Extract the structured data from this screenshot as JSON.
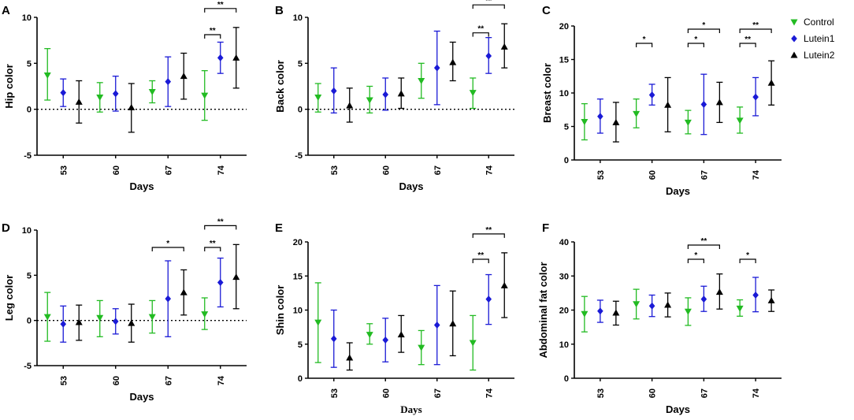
{
  "legend": [
    {
      "name": "Control",
      "color": "#22bb22",
      "marker": "triangle-down"
    },
    {
      "name": "Lutein1",
      "color": "#1a1ad6",
      "marker": "diamond"
    },
    {
      "name": "Lutein2",
      "color": "#000000",
      "marker": "triangle-up"
    }
  ],
  "chart_data": [
    {
      "panel": "A",
      "type": "scatter",
      "subtype": "mean-error-bars",
      "xlabel": "Days",
      "ylabel": "Hip color",
      "categories": [
        "53",
        "60",
        "67",
        "74"
      ],
      "ylim": [
        -5,
        10
      ],
      "yticks": [
        -5,
        0,
        5,
        10
      ],
      "zero_line": true,
      "series": [
        {
          "name": "Control",
          "values": [
            3.7,
            1.3,
            1.9,
            1.5
          ],
          "err_low": [
            1.0,
            -0.3,
            0.7,
            -1.2
          ],
          "err_high": [
            6.6,
            2.9,
            3.1,
            4.2
          ]
        },
        {
          "name": "Lutein1",
          "values": [
            1.8,
            1.7,
            3.0,
            5.6
          ],
          "err_low": [
            0.3,
            -0.2,
            0.3,
            3.9
          ],
          "err_high": [
            3.3,
            3.6,
            5.7,
            7.3
          ]
        },
        {
          "name": "Lutein2",
          "values": [
            0.8,
            0.2,
            3.6,
            5.6
          ],
          "err_low": [
            -1.5,
            -2.5,
            1.1,
            2.3
          ],
          "err_high": [
            3.1,
            2.8,
            6.1,
            8.9
          ]
        }
      ],
      "annotations": [
        {
          "category": "74",
          "from": "Control",
          "to": "Lutein1",
          "label": "**",
          "level": 1
        },
        {
          "category": "74",
          "from": "Control",
          "to": "Lutein2",
          "label": "**",
          "level": 2
        }
      ]
    },
    {
      "panel": "B",
      "type": "scatter",
      "subtype": "mean-error-bars",
      "xlabel": "Days",
      "ylabel": "Back color",
      "categories": [
        "53",
        "60",
        "67",
        "74"
      ],
      "ylim": [
        -5,
        10
      ],
      "yticks": [
        -5,
        0,
        5,
        10
      ],
      "zero_line": true,
      "series": [
        {
          "name": "Control",
          "values": [
            1.3,
            1.0,
            3.1,
            1.8
          ],
          "err_low": [
            -0.3,
            -0.4,
            1.2,
            0.1
          ],
          "err_high": [
            2.8,
            2.5,
            5.0,
            3.4
          ]
        },
        {
          "name": "Lutein1",
          "values": [
            2.0,
            1.6,
            4.5,
            5.8
          ],
          "err_low": [
            -0.4,
            -0.1,
            0.5,
            3.9
          ],
          "err_high": [
            4.5,
            3.4,
            8.5,
            7.8
          ]
        },
        {
          "name": "Lutein2",
          "values": [
            0.4,
            1.7,
            5.1,
            6.8
          ],
          "err_low": [
            -1.4,
            0.1,
            3.1,
            4.5
          ],
          "err_high": [
            2.3,
            3.4,
            7.3,
            9.3
          ]
        }
      ],
      "annotations": [
        {
          "category": "74",
          "from": "Control",
          "to": "Lutein1",
          "label": "**",
          "level": 1
        },
        {
          "category": "74",
          "from": "Control",
          "to": "Lutein2",
          "label": "**",
          "level": 2
        }
      ]
    },
    {
      "panel": "C",
      "type": "scatter",
      "subtype": "mean-error-bars",
      "xlabel": "Days",
      "ylabel": "Breast color",
      "categories": [
        "53",
        "60",
        "67",
        "74"
      ],
      "ylim": [
        0,
        20
      ],
      "yticks": [
        0,
        5,
        10,
        15,
        20
      ],
      "zero_line": false,
      "series": [
        {
          "name": "Control",
          "values": [
            5.7,
            6.9,
            5.6,
            5.9
          ],
          "err_low": [
            3.0,
            4.8,
            3.9,
            4.0
          ],
          "err_high": [
            8.4,
            9.1,
            7.4,
            7.9
          ]
        },
        {
          "name": "Lutein1",
          "values": [
            6.5,
            9.7,
            8.3,
            9.4
          ],
          "err_low": [
            4.0,
            8.2,
            3.8,
            6.6
          ],
          "err_high": [
            9.1,
            11.3,
            12.8,
            12.3
          ]
        },
        {
          "name": "Lutein2",
          "values": [
            5.6,
            8.2,
            8.6,
            11.5
          ],
          "err_low": [
            2.7,
            4.2,
            5.6,
            8.2
          ],
          "err_high": [
            8.6,
            12.3,
            11.6,
            14.8
          ]
        }
      ],
      "annotations": [
        {
          "category": "60",
          "from": "Control",
          "to": "Lutein1",
          "label": "*",
          "level": 1
        },
        {
          "category": "67",
          "from": "Control",
          "to": "Lutein1",
          "label": "*",
          "level": 1
        },
        {
          "category": "67",
          "from": "Control",
          "to": "Lutein2",
          "label": "*",
          "level": 2
        },
        {
          "category": "74",
          "from": "Control",
          "to": "Lutein1",
          "label": "**",
          "level": 1
        },
        {
          "category": "74",
          "from": "Control",
          "to": "Lutein2",
          "label": "**",
          "level": 2
        }
      ]
    },
    {
      "panel": "D",
      "type": "scatter",
      "subtype": "mean-error-bars",
      "xlabel": "Days",
      "ylabel": "Leg color",
      "categories": [
        "53",
        "60",
        "67",
        "74"
      ],
      "ylim": [
        -5,
        10
      ],
      "yticks": [
        -5,
        0,
        5,
        10
      ],
      "zero_line": true,
      "series": [
        {
          "name": "Control",
          "values": [
            0.4,
            0.3,
            0.4,
            0.7
          ],
          "err_low": [
            -2.3,
            -1.8,
            -1.4,
            -1.0
          ],
          "err_high": [
            3.1,
            2.2,
            2.2,
            2.5
          ]
        },
        {
          "name": "Lutein1",
          "values": [
            -0.4,
            -0.1,
            2.4,
            4.2
          ],
          "err_low": [
            -2.4,
            -1.5,
            -1.8,
            1.5
          ],
          "err_high": [
            1.6,
            1.3,
            6.6,
            6.9
          ]
        },
        {
          "name": "Lutein2",
          "values": [
            -0.2,
            -0.3,
            3.1,
            4.8
          ],
          "err_low": [
            -2.2,
            -2.4,
            0.6,
            1.3
          ],
          "err_high": [
            1.7,
            1.8,
            5.6,
            8.4
          ]
        }
      ],
      "annotations": [
        {
          "category": "67",
          "from": "Control",
          "to": "Lutein2",
          "label": "*",
          "level": 1
        },
        {
          "category": "74",
          "from": "Control",
          "to": "Lutein1",
          "label": "**",
          "level": 1
        },
        {
          "category": "74",
          "from": "Control",
          "to": "Lutein2",
          "label": "**",
          "level": 2
        }
      ]
    },
    {
      "panel": "E",
      "type": "scatter",
      "subtype": "mean-error-bars",
      "xlabel": "Days",
      "ylabel": "Shin color",
      "categories": [
        "53",
        "60",
        "67",
        "74"
      ],
      "ylim": [
        0,
        20
      ],
      "yticks": [
        0,
        5,
        10,
        15,
        20
      ],
      "zero_line": false,
      "series": [
        {
          "name": "Control",
          "values": [
            8.2,
            6.4,
            4.5,
            5.2
          ],
          "err_low": [
            2.3,
            5.0,
            2.0,
            1.2
          ],
          "err_high": [
            14.0,
            8.0,
            7.0,
            9.2
          ]
        },
        {
          "name": "Lutein1",
          "values": [
            5.8,
            5.6,
            7.8,
            11.6
          ],
          "err_low": [
            1.6,
            2.4,
            2.0,
            7.9
          ],
          "err_high": [
            10.0,
            8.8,
            13.6,
            15.2
          ]
        },
        {
          "name": "Lutein2",
          "values": [
            3.0,
            6.4,
            8.0,
            13.6
          ],
          "err_low": [
            1.2,
            3.8,
            3.3,
            8.9
          ],
          "err_high": [
            5.2,
            9.2,
            12.8,
            18.4
          ]
        }
      ],
      "annotations": [
        {
          "category": "74",
          "from": "Control",
          "to": "Lutein1",
          "label": "**",
          "level": 1
        },
        {
          "category": "74",
          "from": "Control",
          "to": "Lutein2",
          "label": "**",
          "level": 2
        }
      ]
    },
    {
      "panel": "F",
      "type": "scatter",
      "subtype": "mean-error-bars",
      "xlabel": "Days",
      "ylabel": "Abdominal fat color",
      "categories": [
        "53",
        "60",
        "67",
        "74"
      ],
      "ylim": [
        0,
        40
      ],
      "yticks": [
        0,
        10,
        20,
        30,
        40
      ],
      "zero_line": false,
      "series": [
        {
          "name": "Control",
          "values": [
            18.9,
            21.8,
            19.6,
            20.5
          ],
          "err_low": [
            13.6,
            17.4,
            15.5,
            18.2
          ],
          "err_high": [
            24.0,
            26.1,
            23.6,
            23.0
          ]
        },
        {
          "name": "Lutein1",
          "values": [
            19.7,
            21.2,
            23.2,
            24.4
          ],
          "err_low": [
            16.4,
            18.1,
            19.6,
            19.5
          ],
          "err_high": [
            22.9,
            24.4,
            27.0,
            29.6
          ]
        },
        {
          "name": "Lutein2",
          "values": [
            19.2,
            21.5,
            25.3,
            22.8
          ],
          "err_low": [
            15.6,
            18.0,
            20.3,
            19.6
          ],
          "err_high": [
            22.6,
            25.0,
            30.6,
            25.9
          ]
        }
      ],
      "annotations": [
        {
          "category": "67",
          "from": "Control",
          "to": "Lutein1",
          "label": "*",
          "level": 1
        },
        {
          "category": "67",
          "from": "Control",
          "to": "Lutein2",
          "label": "**",
          "level": 2
        },
        {
          "category": "74",
          "from": "Control",
          "to": "Lutein1",
          "label": "*",
          "level": 1
        }
      ]
    }
  ]
}
